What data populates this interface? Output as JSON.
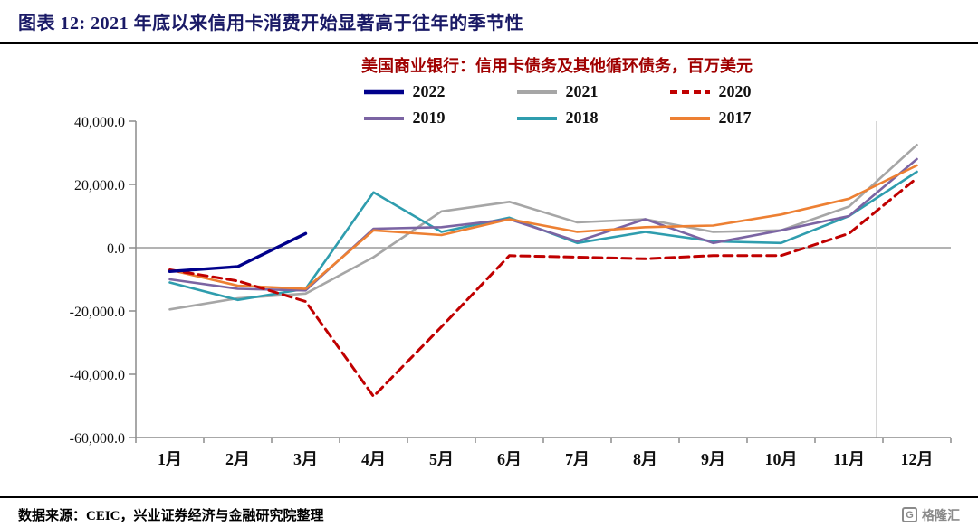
{
  "header": {
    "title": "图表 12:  2021 年底以来信用卡消费开始显著高于往年的季节性"
  },
  "footer": {
    "source": "数据来源：CEIC，兴业证券经济与金融研究院整理",
    "logo_text": "格隆汇",
    "logo_glyph": "G"
  },
  "chart_data": {
    "type": "line",
    "title": "美国商业银行：信用卡债务及其他循环债务，百万美元",
    "categories": [
      "1月",
      "2月",
      "3月",
      "4月",
      "5月",
      "6月",
      "7月",
      "8月",
      "9月",
      "10月",
      "11月",
      "12月"
    ],
    "ylim": [
      -60000,
      40000
    ],
    "y_ticks": [
      40000,
      20000,
      0,
      -20000,
      -40000,
      -60000
    ],
    "y_tick_labels": [
      "40,000.0",
      "20,000.0",
      "0.0",
      "-20,000.0",
      "-40,000.0",
      "-60,000.0"
    ],
    "grid": "zero-line-only",
    "legend_position": "top-center-two-rows",
    "legend_rows": [
      [
        "2022",
        "2021",
        "2020"
      ],
      [
        "2019",
        "2018",
        "2017"
      ]
    ],
    "series": [
      {
        "name": "2021",
        "color": "#a6a6a6",
        "dash": false,
        "width": 2.6,
        "values": [
          -19500,
          -16000,
          -14500,
          -3000,
          11500,
          14500,
          8000,
          9000,
          5000,
          5500,
          13000,
          32500
        ]
      },
      {
        "name": "2018",
        "color": "#2f9dae",
        "dash": false,
        "width": 2.6,
        "values": [
          -11000,
          -16500,
          -13000,
          17500,
          5000,
          9500,
          1500,
          5000,
          2000,
          1500,
          10000,
          24000
        ]
      },
      {
        "name": "2019",
        "color": "#7b64a3",
        "dash": false,
        "width": 2.6,
        "values": [
          -10000,
          -13000,
          -13500,
          6000,
          6500,
          9000,
          2000,
          9000,
          1500,
          5500,
          10000,
          28000
        ]
      },
      {
        "name": "2017",
        "color": "#ed8033",
        "dash": false,
        "width": 2.6,
        "values": [
          -7000,
          -12000,
          -13000,
          5500,
          4000,
          9000,
          5000,
          6500,
          7000,
          10500,
          15500,
          26000
        ]
      },
      {
        "name": "2020",
        "color": "#c00000",
        "dash": true,
        "width": 3,
        "values": [
          -7000,
          -10500,
          -17000,
          -47000,
          -25000,
          -2500,
          -3000,
          -3500,
          -2500,
          -2500,
          4500,
          22000
        ]
      },
      {
        "name": "2022",
        "color": "#00008b",
        "dash": false,
        "width": 3.4,
        "values": [
          -7500,
          -6000,
          4500
        ]
      }
    ]
  }
}
